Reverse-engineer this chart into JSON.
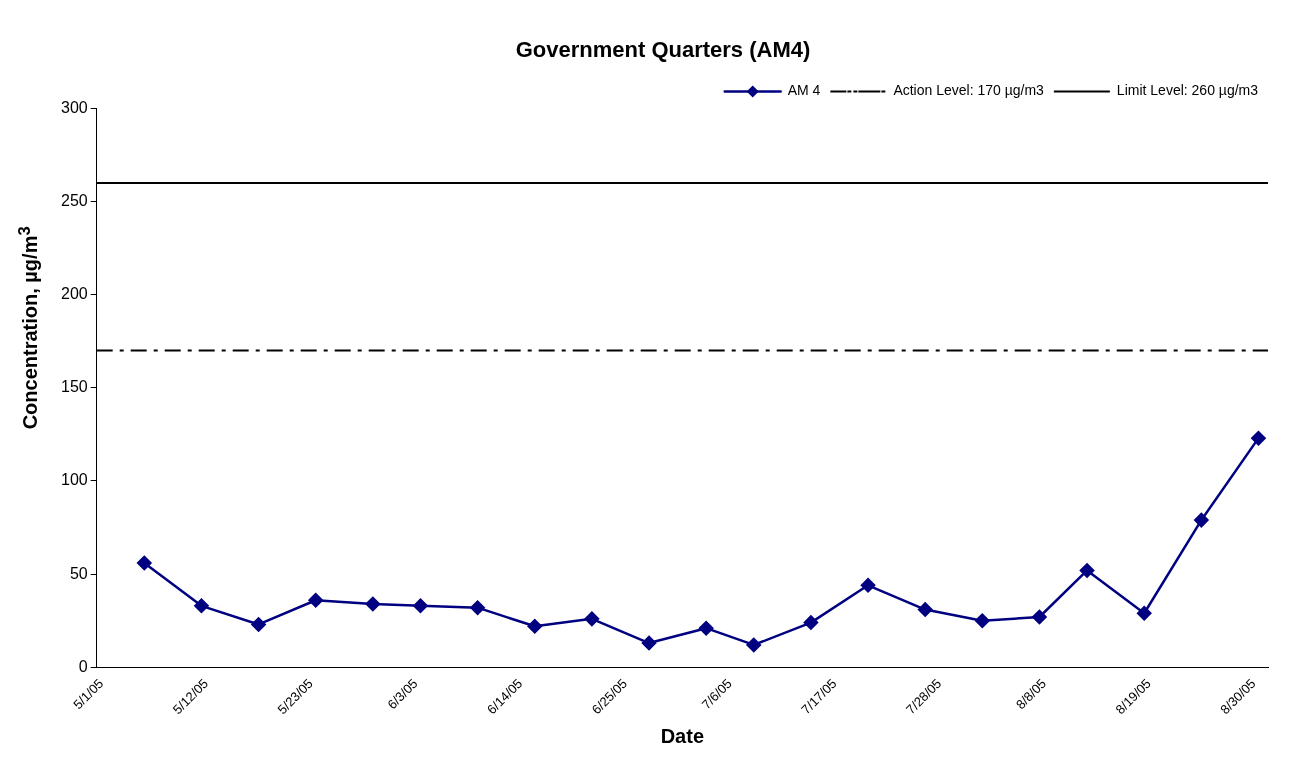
{
  "chart_data": {
    "type": "line",
    "title": "Government Quarters (AM4)",
    "xlabel": "Date",
    "ylabel": "Concentration, µg/m$^{3}$",
    "x": [
      "--05-06",
      "--05-12",
      "--05-18",
      "--05-24",
      "--05-30",
      "--06-04",
      "--06-10",
      "--06-16",
      "--06-22",
      "--06-28",
      "--07-04",
      "--07-09",
      "--07-15",
      "--07-21",
      "--07-27",
      "--08-02",
      "--08-08",
      "--08-13",
      "--08-19",
      "--08-25",
      "--08-31"
    ],
    "series": [
      {
        "name": "AM 4",
        "color": "#000080",
        "values": [
          56,
          33,
          23,
          36,
          34,
          33,
          32,
          22,
          26,
          13,
          21,
          12,
          24,
          44,
          31,
          25,
          27,
          52,
          29,
          79,
          123
        ]
      }
    ],
    "xlim": [
      "--05-01",
      "--09-01"
    ],
    "xticks": [
      {
        "value": "--05-01",
        "label": "5/1/05"
      },
      {
        "value": "--05-12",
        "label": "5/12/05"
      },
      {
        "value": "--05-23",
        "label": "5/23/05"
      },
      {
        "value": "--06-03",
        "label": "6/3/05"
      },
      {
        "value": "--06-14",
        "label": "6/14/05"
      },
      {
        "value": "--06-25",
        "label": "6/25/05"
      },
      {
        "value": "--07-06",
        "label": "7/6/05"
      },
      {
        "value": "--07-17",
        "label": "7/17/05"
      },
      {
        "value": "--07-28",
        "label": "7/28/05"
      },
      {
        "value": "--08-08",
        "label": "8/8/05"
      },
      {
        "value": "--08-19",
        "label": "8/19/05"
      },
      {
        "value": "--08-30",
        "label": "8/30/05"
      }
    ],
    "ylim": [
      0,
      300
    ],
    "yticks": [
      0,
      50,
      100,
      150,
      200,
      250,
      300
    ],
    "ref_lines": [
      {
        "axis": "y",
        "value": 170,
        "label": "Action Level: 170 µg/m3",
        "color": "#000000",
        "line_style": "dashed"
      },
      {
        "axis": "y",
        "value": 260,
        "label": "Limit Level: 260 µg/m3",
        "color": "#000000",
        "line_style": "solid"
      }
    ],
    "marker": "diamond",
    "line_style": "solid",
    "legend": "top right",
    "grid": false
  }
}
